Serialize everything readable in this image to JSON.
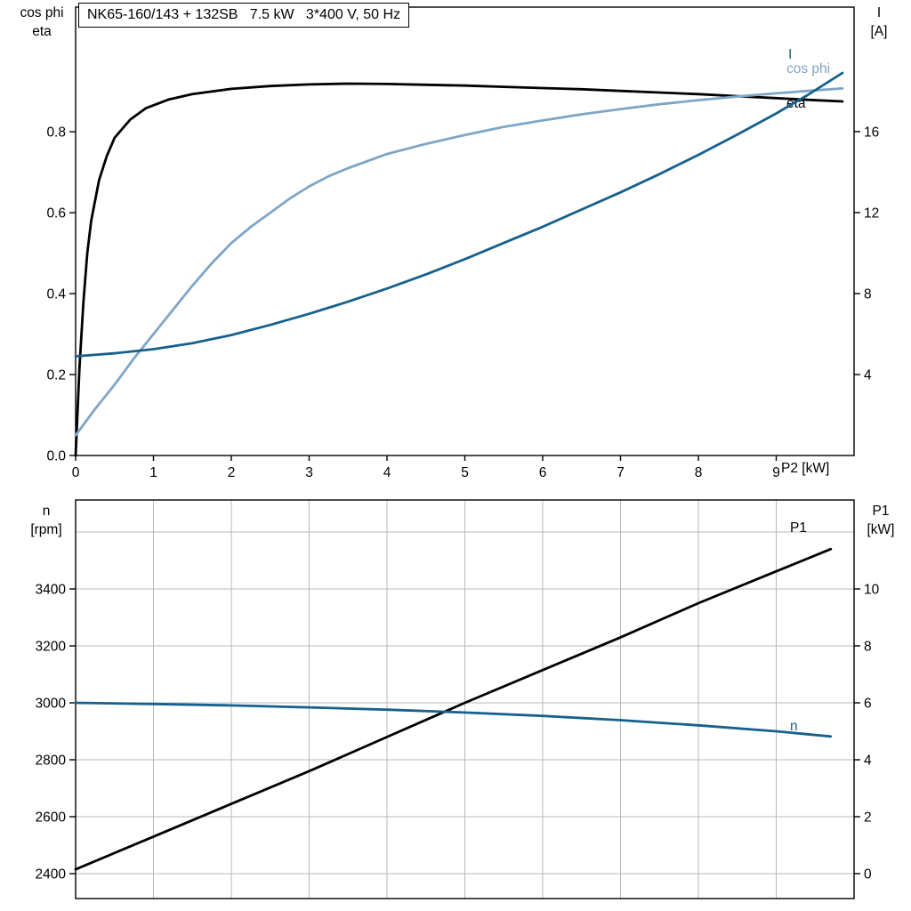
{
  "title_box": {
    "text": "NK65-160/143 + 132SB   7.5 kW   3*400 V, 50 Hz"
  },
  "colors": {
    "black": "#000000",
    "dark_blue": "#16608d",
    "light_blue": "#7fa5c6",
    "grid": "#b9b9b9",
    "frame": "#000000",
    "background": "#ffffff"
  },
  "chart_data": [
    {
      "type": "line",
      "title": "NK65-160/143 + 132SB 7.5 kW 3*400 V, 50 Hz",
      "grid": false,
      "x_axis": {
        "label": "P2 [kW]",
        "range": [
          0,
          10
        ],
        "ticks": [
          0,
          1,
          2,
          3,
          4,
          5,
          6,
          7,
          8,
          9
        ],
        "tick_labels": [
          "0",
          "1",
          "2",
          "3",
          "4",
          "5",
          "6",
          "7",
          "8",
          "9"
        ],
        "grid_values": []
      },
      "y_left": {
        "label_lines": [
          "cos phi",
          "eta"
        ],
        "ticks": [
          0,
          0.2,
          0.4,
          0.6,
          0.8
        ],
        "tick_labels": [
          "0.0",
          "0.2",
          "0.4",
          "0.6",
          "0.8"
        ],
        "range_at_frame": [
          0,
          1.108
        ],
        "grid_values": []
      },
      "y_right": {
        "label_lines": [
          "I",
          "[A]"
        ],
        "ticks": [
          4,
          8,
          12,
          16
        ],
        "tick_labels": [
          "4",
          "8",
          "12",
          "16"
        ],
        "range_at_frame": [
          0,
          22.15
        ]
      },
      "series": [
        {
          "key": "eta",
          "name": "eta",
          "axis": "left",
          "color_key": "black",
          "label": {
            "text": "eta",
            "x": 884,
            "y": 121
          },
          "points": [
            [
              0,
              0
            ],
            [
              0.05,
              0.22
            ],
            [
              0.1,
              0.38
            ],
            [
              0.15,
              0.5
            ],
            [
              0.2,
              0.58
            ],
            [
              0.3,
              0.68
            ],
            [
              0.4,
              0.74
            ],
            [
              0.5,
              0.785
            ],
            [
              0.7,
              0.83
            ],
            [
              0.9,
              0.858
            ],
            [
              1.2,
              0.88
            ],
            [
              1.5,
              0.893
            ],
            [
              2,
              0.906
            ],
            [
              2.5,
              0.913
            ],
            [
              3,
              0.917
            ],
            [
              3.5,
              0.919
            ],
            [
              4,
              0.918
            ],
            [
              4.5,
              0.916
            ],
            [
              5,
              0.914
            ],
            [
              5.5,
              0.911
            ],
            [
              6,
              0.908
            ],
            [
              6.5,
              0.905
            ],
            [
              7,
              0.901
            ],
            [
              7.5,
              0.897
            ],
            [
              8,
              0.893
            ],
            [
              8.5,
              0.888
            ],
            [
              9,
              0.883
            ],
            [
              9.4,
              0.879
            ],
            [
              9.85,
              0.875
            ]
          ]
        },
        {
          "key": "cos-phi",
          "name": "cos phi",
          "axis": "left",
          "color_key": "light_blue",
          "label": {
            "text": "cos phi",
            "x": 884,
            "y": 82
          },
          "points": [
            [
              0,
              0.05
            ],
            [
              0.25,
              0.115
            ],
            [
              0.5,
              0.175
            ],
            [
              0.75,
              0.24
            ],
            [
              1,
              0.3
            ],
            [
              1.25,
              0.36
            ],
            [
              1.5,
              0.42
            ],
            [
              1.75,
              0.475
            ],
            [
              2,
              0.525
            ],
            [
              2.25,
              0.565
            ],
            [
              2.5,
              0.6
            ],
            [
              2.75,
              0.635
            ],
            [
              3,
              0.665
            ],
            [
              3.25,
              0.69
            ],
            [
              3.5,
              0.71
            ],
            [
              4,
              0.745
            ],
            [
              4.5,
              0.77
            ],
            [
              5,
              0.792
            ],
            [
              5.5,
              0.812
            ],
            [
              6,
              0.828
            ],
            [
              6.5,
              0.843
            ],
            [
              7,
              0.856
            ],
            [
              7.5,
              0.868
            ],
            [
              8,
              0.878
            ],
            [
              8.5,
              0.887
            ],
            [
              9,
              0.895
            ],
            [
              9.4,
              0.901
            ],
            [
              9.85,
              0.907
            ]
          ]
        },
        {
          "key": "current",
          "name": "I",
          "axis": "right",
          "color_key": "dark_blue",
          "label": {
            "text": "I",
            "x": 886,
            "y": 66
          },
          "points": [
            [
              0,
              4.9
            ],
            [
              0.5,
              5.05
            ],
            [
              1,
              5.25
            ],
            [
              1.5,
              5.55
            ],
            [
              2,
              5.95
            ],
            [
              2.5,
              6.45
            ],
            [
              3,
              7.0
            ],
            [
              3.5,
              7.6
            ],
            [
              4,
              8.25
            ],
            [
              4.5,
              8.95
            ],
            [
              5,
              9.7
            ],
            [
              5.5,
              10.5
            ],
            [
              6,
              11.3
            ],
            [
              6.5,
              12.15
            ],
            [
              7,
              13.0
            ],
            [
              7.5,
              13.9
            ],
            [
              8,
              14.85
            ],
            [
              8.5,
              15.85
            ],
            [
              9,
              16.9
            ],
            [
              9.4,
              17.8
            ],
            [
              9.85,
              18.9
            ]
          ]
        }
      ]
    },
    {
      "type": "line",
      "title": "",
      "grid": true,
      "x_axis": {
        "label": "",
        "range": [
          0,
          10
        ],
        "ticks": [],
        "tick_labels": [],
        "grid_values": [
          1,
          2,
          3,
          4,
          5,
          6,
          7,
          8,
          9
        ]
      },
      "y_left": {
        "label_lines": [
          "n",
          "[rpm]"
        ],
        "ticks": [
          2400,
          2600,
          2800,
          3000,
          3200,
          3400
        ],
        "tick_labels": [
          "2400",
          "2600",
          "2800",
          "3000",
          "3200",
          "3400"
        ],
        "range_at_frame": [
          2312.5,
          3712.5
        ],
        "grid_values": [
          2400,
          2600,
          2800,
          3000,
          3200,
          3400,
          3600
        ]
      },
      "y_right": {
        "label_lines": [
          "P1",
          "[kW]"
        ],
        "ticks": [
          0,
          2,
          4,
          6,
          8,
          10
        ],
        "tick_labels": [
          "0",
          "2",
          "4",
          "6",
          "8",
          "10"
        ],
        "range_at_frame": [
          -0.875,
          13.125
        ]
      },
      "series": [
        {
          "key": "p1",
          "name": "P1",
          "axis": "right",
          "color_key": "black",
          "label": {
            "text": "P1",
            "x": 888,
            "y": 598
          },
          "points": [
            [
              0,
              0.15
            ],
            [
              1,
              1.3
            ],
            [
              2,
              2.45
            ],
            [
              3,
              3.6
            ],
            [
              4,
              4.8
            ],
            [
              5,
              6.0
            ],
            [
              6,
              7.15
            ],
            [
              7,
              8.3
            ],
            [
              8,
              9.5
            ],
            [
              9,
              10.62
            ],
            [
              9.7,
              11.4
            ]
          ]
        },
        {
          "key": "speed",
          "name": "n",
          "axis": "left",
          "color_key": "dark_blue",
          "label": {
            "text": "n",
            "x": 888,
            "y": 821
          },
          "points": [
            [
              0,
              3000
            ],
            [
              1,
              2996
            ],
            [
              2,
              2991
            ],
            [
              3,
              2984
            ],
            [
              4,
              2976
            ],
            [
              5,
              2966
            ],
            [
              6,
              2954
            ],
            [
              7,
              2939
            ],
            [
              8,
              2921
            ],
            [
              9,
              2900
            ],
            [
              9.7,
              2882
            ]
          ]
        }
      ]
    }
  ]
}
